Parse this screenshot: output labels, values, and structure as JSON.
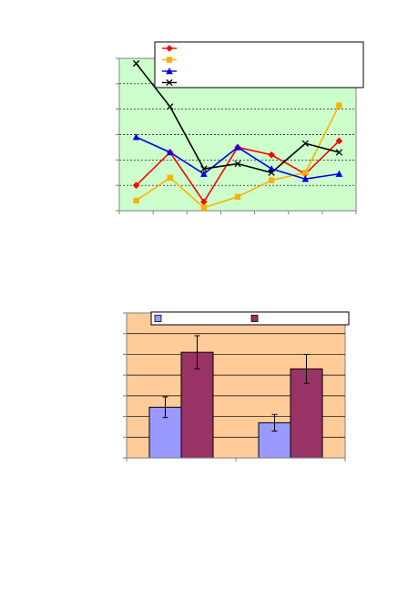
{
  "chart_data": [
    {
      "type": "line",
      "title": "",
      "xlabel": "",
      "ylabel": "",
      "grid": true,
      "legend_placement": "top-right",
      "plot_background": "#ccffcc",
      "x": [
        1,
        2,
        3,
        4,
        5,
        6,
        7
      ],
      "ylim": [
        0,
        6
      ],
      "series": [
        {
          "color": "#ff0000",
          "marker": "diamond",
          "values": [
            1.0,
            2.3,
            0.35,
            2.5,
            2.2,
            1.45,
            2.75
          ]
        },
        {
          "color": "#ffb000",
          "marker": "square",
          "values": [
            0.4,
            1.3,
            0.12,
            0.55,
            1.2,
            1.5,
            4.15
          ]
        },
        {
          "color": "#0000ee",
          "marker": "triangle",
          "values": [
            2.9,
            2.3,
            1.45,
            2.5,
            1.65,
            1.25,
            1.45
          ]
        },
        {
          "color": "#000000",
          "marker": "x",
          "values": [
            5.8,
            4.1,
            1.65,
            1.85,
            1.5,
            2.65,
            2.3
          ]
        }
      ]
    },
    {
      "type": "bar",
      "title": "",
      "xlabel": "",
      "ylabel": "",
      "grid": true,
      "legend_placement": "top",
      "plot_background": "#ffcc99",
      "categories": [
        "",
        ""
      ],
      "ylim": [
        0,
        7
      ],
      "series": [
        {
          "color": "#9999ff",
          "values": [
            2.45,
            1.7
          ],
          "errors": [
            0.5,
            0.4
          ]
        },
        {
          "color": "#993366",
          "values": [
            5.1,
            4.3
          ],
          "errors": [
            0.8,
            0.7
          ]
        }
      ]
    }
  ]
}
